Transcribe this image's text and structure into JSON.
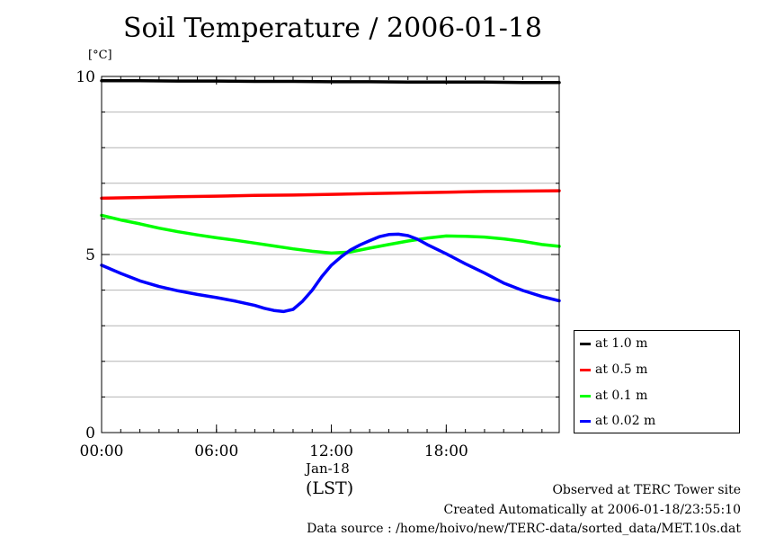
{
  "title": "Soil Temperature / 2006-01-18",
  "unit_label": "[°C]",
  "date_label": "Jan-18",
  "tz_label": "(LST)",
  "footer": {
    "observed": "Observed at TERC Tower site",
    "created": "Created Automatically at 2006-01-18/23:55:10",
    "source": "Data source : /home/hoivo/new/TERC-data/sorted_data/MET.10s.dat"
  },
  "chart_data": {
    "type": "line",
    "title": "Soil Temperature / 2006-01-18",
    "xlabel": "(LST)",
    "ylabel": "[°C]",
    "xlim": [
      0,
      23.9
    ],
    "ylim": [
      0,
      10
    ],
    "x_ticks": [
      {
        "value": 0,
        "label": "00:00"
      },
      {
        "value": 6,
        "label": "06:00"
      },
      {
        "value": 12,
        "label": "12:00"
      },
      {
        "value": 18,
        "label": "18:00"
      }
    ],
    "y_ticks": [
      {
        "value": 0,
        "label": "0"
      },
      {
        "value": 5,
        "label": "5"
      },
      {
        "value": 10,
        "label": "10"
      }
    ],
    "grid": true,
    "legend_position": "right",
    "series": [
      {
        "name": "at 1.0 m",
        "color": "#000000",
        "x": [
          0,
          2,
          4,
          6,
          8,
          10,
          12,
          14,
          16,
          18,
          20,
          22,
          23.9
        ],
        "y": [
          9.88,
          9.88,
          9.87,
          9.87,
          9.86,
          9.86,
          9.85,
          9.85,
          9.84,
          9.84,
          9.84,
          9.83,
          9.83
        ]
      },
      {
        "name": "at 0.5 m",
        "color": "#ff0000",
        "x": [
          0,
          2,
          4,
          6,
          8,
          10,
          12,
          14,
          16,
          18,
          20,
          22,
          23.9
        ],
        "y": [
          6.58,
          6.6,
          6.62,
          6.64,
          6.66,
          6.67,
          6.69,
          6.71,
          6.73,
          6.75,
          6.77,
          6.78,
          6.79
        ]
      },
      {
        "name": "at 0.1 m",
        "color": "#00ff00",
        "x": [
          0,
          1,
          2,
          3,
          4,
          5,
          6,
          7,
          8,
          9,
          10,
          11,
          12,
          13,
          14,
          15,
          16,
          17,
          18,
          19,
          20,
          21,
          22,
          23,
          23.9
        ],
        "y": [
          6.1,
          5.97,
          5.86,
          5.74,
          5.64,
          5.55,
          5.47,
          5.4,
          5.32,
          5.24,
          5.16,
          5.09,
          5.04,
          5.07,
          5.18,
          5.28,
          5.38,
          5.46,
          5.52,
          5.51,
          5.49,
          5.44,
          5.37,
          5.28,
          5.23
        ]
      },
      {
        "name": "at 0.02 m",
        "color": "#0000ff",
        "x": [
          0,
          1,
          2,
          3,
          4,
          5,
          6,
          7,
          8,
          8.5,
          9,
          9.5,
          10,
          10.5,
          11,
          11.5,
          12,
          12.5,
          13,
          13.5,
          14,
          14.5,
          15,
          15.5,
          16,
          16.5,
          17,
          18,
          19,
          20,
          21,
          22,
          23,
          23.9
        ],
        "y": [
          4.7,
          4.47,
          4.26,
          4.1,
          3.98,
          3.88,
          3.79,
          3.69,
          3.57,
          3.49,
          3.43,
          3.4,
          3.46,
          3.69,
          4.0,
          4.38,
          4.7,
          4.93,
          5.13,
          5.27,
          5.39,
          5.5,
          5.56,
          5.57,
          5.53,
          5.43,
          5.28,
          5.02,
          4.74,
          4.48,
          4.2,
          3.99,
          3.82,
          3.7
        ]
      }
    ]
  }
}
